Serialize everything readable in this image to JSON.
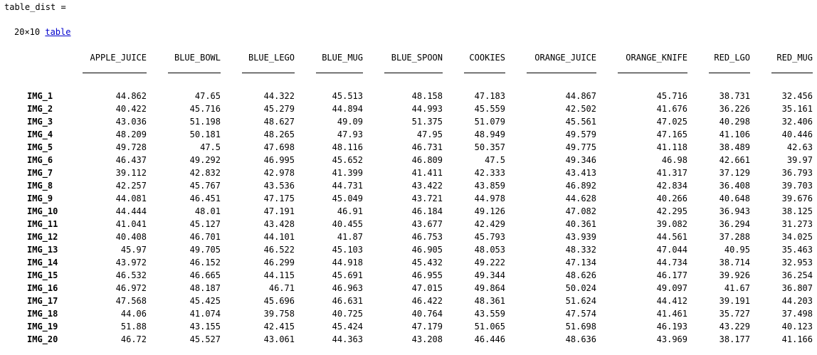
{
  "var_name": "table_dist =",
  "dims": "20×10",
  "class_link": "table",
  "columns": [
    "APPLE_JUICE",
    "BLUE_BOWL",
    "BLUE_LEGO",
    "BLUE_MUG",
    "BLUE_SPOON",
    "COOKIES",
    "ORANGE_JUICE",
    "ORANGE_KNIFE",
    "RED_LGO",
    "RED_MUG"
  ],
  "rows": [
    {
      "name": "IMG_1",
      "values": [
        "44.862",
        "47.65",
        "44.322",
        "45.513",
        "48.158",
        "47.183",
        "44.867",
        "45.716",
        "38.731",
        "32.456"
      ]
    },
    {
      "name": "IMG_2",
      "values": [
        "40.422",
        "45.716",
        "45.279",
        "44.894",
        "44.993",
        "45.559",
        "42.502",
        "41.676",
        "36.226",
        "35.161"
      ]
    },
    {
      "name": "IMG_3",
      "values": [
        "43.036",
        "51.198",
        "48.627",
        "49.09",
        "51.375",
        "51.079",
        "45.561",
        "47.025",
        "40.298",
        "32.406"
      ]
    },
    {
      "name": "IMG_4",
      "values": [
        "48.209",
        "50.181",
        "48.265",
        "47.93",
        "47.95",
        "48.949",
        "49.579",
        "47.165",
        "41.106",
        "40.446"
      ]
    },
    {
      "name": "IMG_5",
      "values": [
        "49.728",
        "47.5",
        "47.698",
        "48.116",
        "46.731",
        "50.357",
        "49.775",
        "41.118",
        "38.489",
        "42.63"
      ]
    },
    {
      "name": "IMG_6",
      "values": [
        "46.437",
        "49.292",
        "46.995",
        "45.652",
        "46.809",
        "47.5",
        "49.346",
        "46.98",
        "42.661",
        "39.97"
      ]
    },
    {
      "name": "IMG_7",
      "values": [
        "39.112",
        "42.832",
        "42.978",
        "41.399",
        "41.411",
        "42.333",
        "43.413",
        "41.317",
        "37.129",
        "36.793"
      ]
    },
    {
      "name": "IMG_8",
      "values": [
        "42.257",
        "45.767",
        "43.536",
        "44.731",
        "43.422",
        "43.859",
        "46.892",
        "42.834",
        "36.408",
        "39.703"
      ]
    },
    {
      "name": "IMG_9",
      "values": [
        "44.081",
        "46.451",
        "47.175",
        "45.049",
        "43.721",
        "44.978",
        "44.628",
        "40.266",
        "40.648",
        "39.676"
      ]
    },
    {
      "name": "IMG_10",
      "values": [
        "44.444",
        "48.01",
        "47.191",
        "46.91",
        "46.184",
        "49.126",
        "47.082",
        "42.295",
        "36.943",
        "38.125"
      ]
    },
    {
      "name": "IMG_11",
      "values": [
        "41.041",
        "45.127",
        "43.428",
        "40.455",
        "43.677",
        "42.429",
        "40.361",
        "39.082",
        "36.294",
        "31.273"
      ]
    },
    {
      "name": "IMG_12",
      "values": [
        "40.408",
        "46.701",
        "44.101",
        "41.87",
        "46.753",
        "45.793",
        "43.939",
        "44.561",
        "37.288",
        "34.025"
      ]
    },
    {
      "name": "IMG_13",
      "values": [
        "45.97",
        "49.705",
        "46.522",
        "45.103",
        "46.905",
        "48.053",
        "48.332",
        "47.044",
        "40.95",
        "35.463"
      ]
    },
    {
      "name": "IMG_14",
      "values": [
        "43.972",
        "46.152",
        "46.299",
        "44.918",
        "45.432",
        "49.222",
        "47.134",
        "44.734",
        "38.714",
        "32.953"
      ]
    },
    {
      "name": "IMG_15",
      "values": [
        "46.532",
        "46.665",
        "44.115",
        "45.691",
        "46.955",
        "49.344",
        "48.626",
        "46.177",
        "39.926",
        "36.254"
      ]
    },
    {
      "name": "IMG_16",
      "values": [
        "46.972",
        "48.187",
        "46.71",
        "46.963",
        "47.015",
        "49.864",
        "50.024",
        "49.097",
        "41.67",
        "36.807"
      ]
    },
    {
      "name": "IMG_17",
      "values": [
        "47.568",
        "45.425",
        "45.696",
        "46.631",
        "46.422",
        "48.361",
        "51.624",
        "44.412",
        "39.191",
        "44.203"
      ]
    },
    {
      "name": "IMG_18",
      "values": [
        "44.06",
        "41.074",
        "39.758",
        "40.725",
        "40.764",
        "43.559",
        "47.574",
        "41.461",
        "35.727",
        "37.498"
      ]
    },
    {
      "name": "IMG_19",
      "values": [
        "51.88",
        "43.155",
        "42.415",
        "45.424",
        "47.179",
        "51.065",
        "51.698",
        "46.193",
        "43.229",
        "40.123"
      ]
    },
    {
      "name": "IMG_20",
      "values": [
        "46.72",
        "45.527",
        "43.061",
        "44.363",
        "43.208",
        "46.446",
        "48.636",
        "43.969",
        "38.177",
        "41.166"
      ]
    }
  ]
}
